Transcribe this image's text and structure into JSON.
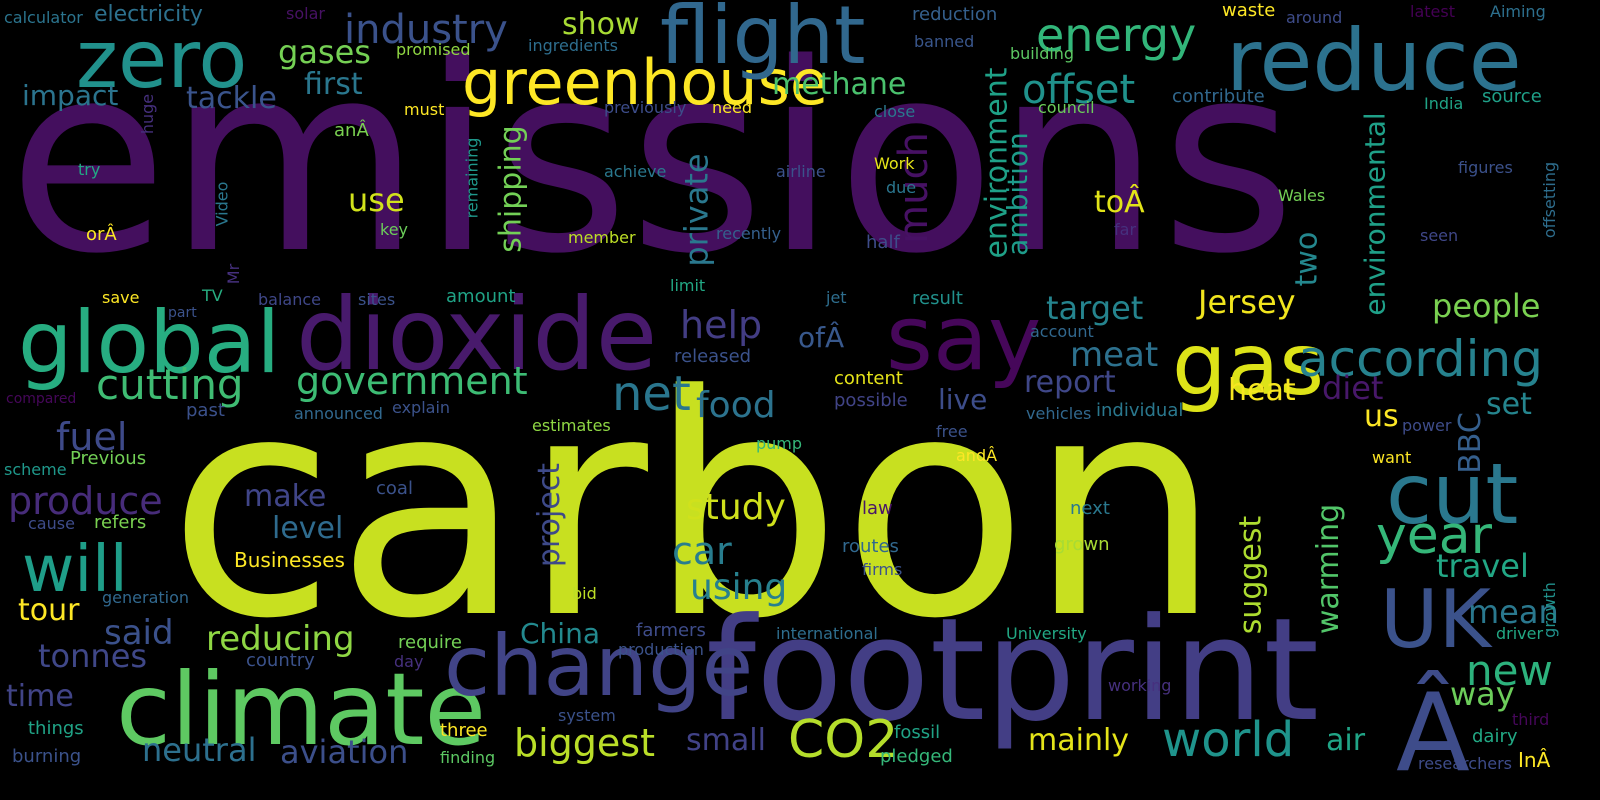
{
  "words": [
    {
      "text": "emissions",
      "color": "#440f5e"
    },
    {
      "text": "carbon",
      "color": "#c8e020"
    },
    {
      "text": "footprint",
      "color": "#433e85"
    },
    {
      "text": "dioxide",
      "color": "#481a6c"
    },
    {
      "text": "climate",
      "color": "#5ec962"
    },
    {
      "text": "change",
      "color": "#414487"
    },
    {
      "text": "reduce",
      "color": "#2c728e"
    },
    {
      "text": "greenhouse",
      "color": "#fde725"
    },
    {
      "text": "flight",
      "color": "#31688e"
    },
    {
      "text": "zero",
      "color": "#21918c"
    },
    {
      "text": "gas",
      "color": "#dde318"
    },
    {
      "text": "say",
      "color": "#46075a"
    },
    {
      "text": "global",
      "color": "#27ad81"
    },
    {
      "text": "cut",
      "color": "#2a788e"
    },
    {
      "text": "UK",
      "color": "#3b528b"
    },
    {
      "text": "Â",
      "color": "#3e4c8a"
    },
    {
      "text": "according",
      "color": "#26828e"
    },
    {
      "text": "will",
      "color": "#1f9e89"
    },
    {
      "text": "year",
      "color": "#35b779"
    },
    {
      "text": "CO2",
      "color": "#b5de2b"
    },
    {
      "text": "world",
      "color": "#1f948c"
    },
    {
      "text": "net",
      "color": "#2a768e"
    },
    {
      "text": "cutting",
      "color": "#3fbc73"
    },
    {
      "text": "government",
      "color": "#3dbc74"
    },
    {
      "text": "energy",
      "color": "#32b67a"
    },
    {
      "text": "industry",
      "color": "#3b528b"
    },
    {
      "text": "produce",
      "color": "#472c7a"
    },
    {
      "text": "biggest",
      "color": "#bade28"
    },
    {
      "text": "new",
      "color": "#2db27d"
    },
    {
      "text": "offset",
      "color": "#20928c"
    },
    {
      "text": "food",
      "color": "#2c738e"
    },
    {
      "text": "fuel",
      "color": "#3e4a89"
    },
    {
      "text": "neutral",
      "color": "#2d708e"
    },
    {
      "text": "aviation",
      "color": "#3c4f8a"
    },
    {
      "text": "reducing",
      "color": "#8fd744"
    },
    {
      "text": "tonnes",
      "color": "#3f4788"
    },
    {
      "text": "using",
      "color": "#27808e"
    },
    {
      "text": "study",
      "color": "#d0e11c"
    },
    {
      "text": "car",
      "color": "#287d8e"
    },
    {
      "text": "methane",
      "color": "#4ac16d"
    },
    {
      "text": "target",
      "color": "#25848e"
    },
    {
      "text": "Jersey",
      "color": "#f1e51d"
    },
    {
      "text": "meat",
      "color": "#2d718e"
    },
    {
      "text": "help",
      "color": "#433d84"
    },
    {
      "text": "gases",
      "color": "#75d054"
    },
    {
      "text": "said",
      "color": "#3b518b"
    },
    {
      "text": "travel",
      "color": "#22a785"
    },
    {
      "text": "mean",
      "color": "#2a788e"
    },
    {
      "text": "way",
      "color": "#6ccd5a"
    },
    {
      "text": "show",
      "color": "#a8db34"
    },
    {
      "text": "people",
      "color": "#7ad151"
    },
    {
      "text": "first",
      "color": "#2a778e"
    },
    {
      "text": "tackle",
      "color": "#3a548c"
    },
    {
      "text": "impact",
      "color": "#2b748e"
    },
    {
      "text": "use",
      "color": "#d2e21b"
    },
    {
      "text": "China",
      "color": "#23898e"
    },
    {
      "text": "mainly",
      "color": "#e5e419"
    },
    {
      "text": "air",
      "color": "#20a486"
    },
    {
      "text": "heat",
      "color": "#f6e620"
    },
    {
      "text": "diet",
      "color": "#48186a"
    },
    {
      "text": "set",
      "color": "#25858e"
    },
    {
      "text": "report",
      "color": "#3f4788"
    },
    {
      "text": "live",
      "color": "#3d4d8a"
    },
    {
      "text": "tour",
      "color": "#fde725"
    },
    {
      "text": "time",
      "color": "#414487"
    },
    {
      "text": "make",
      "color": "#404588"
    },
    {
      "text": "level",
      "color": "#2f6b8e"
    },
    {
      "text": "small",
      "color": "#414287"
    },
    {
      "text": "us",
      "color": "#fde725"
    },
    {
      "text": "ofÂ",
      "color": "#38588c"
    },
    {
      "text": "toÂ",
      "color": "#e2e418"
    },
    {
      "text": "much",
      "color": "#471164"
    },
    {
      "text": "private",
      "color": "#2a788e"
    },
    {
      "text": "shipping",
      "color": "#73d056"
    },
    {
      "text": "two",
      "color": "#24878e"
    },
    {
      "text": "environment",
      "color": "#1fa187"
    },
    {
      "text": "ambition",
      "color": "#1e9b8a"
    },
    {
      "text": "environmental",
      "color": "#1fa088"
    },
    {
      "text": "project",
      "color": "#3e4a89"
    },
    {
      "text": "suggest",
      "color": "#addc30"
    },
    {
      "text": "warming",
      "color": "#52c569"
    },
    {
      "text": "BBC",
      "color": "#355f8d"
    },
    {
      "text": "electricity",
      "color": "#2d718e"
    },
    {
      "text": "calculator",
      "color": "#2b748e"
    },
    {
      "text": "solar",
      "color": "#471164"
    },
    {
      "text": "reduction",
      "color": "#35608d"
    },
    {
      "text": "waste",
      "color": "#fde725"
    },
    {
      "text": "around",
      "color": "#3e4c8a"
    },
    {
      "text": "latest",
      "color": "#440154"
    },
    {
      "text": "Aiming",
      "color": "#2d708e"
    },
    {
      "text": "promised",
      "color": "#90d743"
    },
    {
      "text": "ingredients",
      "color": "#2e6e8e"
    },
    {
      "text": "banned",
      "color": "#39568c"
    },
    {
      "text": "building",
      "color": "#5cc863"
    },
    {
      "text": "contribute",
      "color": "#31688e"
    },
    {
      "text": "India",
      "color": "#20a386"
    },
    {
      "text": "source",
      "color": "#1fa088"
    },
    {
      "text": "huge",
      "color": "#46307e"
    },
    {
      "text": "anÂ",
      "color": "#7ad151"
    },
    {
      "text": "must",
      "color": "#fde725"
    },
    {
      "text": "previously",
      "color": "#3d4d8a"
    },
    {
      "text": "need",
      "color": "#fde725"
    },
    {
      "text": "close",
      "color": "#2a788e"
    },
    {
      "text": "council",
      "color": "#6ccd5a"
    },
    {
      "text": "figures",
      "color": "#3b518b"
    },
    {
      "text": "offsetting",
      "color": "#2e6e8e"
    },
    {
      "text": "try",
      "color": "#22a884"
    },
    {
      "text": "Video",
      "color": "#2a778e"
    },
    {
      "text": "remaining",
      "color": "#1f988b"
    },
    {
      "text": "achieve",
      "color": "#2a788e"
    },
    {
      "text": "airline",
      "color": "#3b528b"
    },
    {
      "text": "Work",
      "color": "#e5e419"
    },
    {
      "text": "due",
      "color": "#2a768e"
    },
    {
      "text": "Wales",
      "color": "#73d056"
    },
    {
      "text": "far",
      "color": "#46307e"
    },
    {
      "text": "seen",
      "color": "#3f4788"
    },
    {
      "text": "orÂ",
      "color": "#fde725"
    },
    {
      "text": "Mr",
      "color": "#46307e"
    },
    {
      "text": "key",
      "color": "#6ccd5a"
    },
    {
      "text": "member",
      "color": "#bddf26"
    },
    {
      "text": "recently",
      "color": "#35608d"
    },
    {
      "text": "half",
      "color": "#3e4c8a"
    },
    {
      "text": "save",
      "color": "#fde725"
    },
    {
      "text": "TV",
      "color": "#27ad81"
    },
    {
      "text": "balance",
      "color": "#3f4788"
    },
    {
      "text": "sites",
      "color": "#3b528b"
    },
    {
      "text": "amount",
      "color": "#20a386"
    },
    {
      "text": "part",
      "color": "#3b528b"
    },
    {
      "text": "limit",
      "color": "#22a884"
    },
    {
      "text": "jet",
      "color": "#2e6e8e"
    },
    {
      "text": "result",
      "color": "#21918c"
    },
    {
      "text": "account",
      "color": "#31688e"
    },
    {
      "text": "released",
      "color": "#3b528b"
    },
    {
      "text": "content",
      "color": "#e5e419"
    },
    {
      "text": "possible",
      "color": "#414487"
    },
    {
      "text": "compared",
      "color": "#46075a"
    },
    {
      "text": "past",
      "color": "#3b518b"
    },
    {
      "text": "announced",
      "color": "#31688e"
    },
    {
      "text": "explain",
      "color": "#3b528b"
    },
    {
      "text": "vehicles",
      "color": "#31688e"
    },
    {
      "text": "individual",
      "color": "#2a788e"
    },
    {
      "text": "estimates",
      "color": "#8fd744"
    },
    {
      "text": "scheme",
      "color": "#1f988b"
    },
    {
      "text": "Previous",
      "color": "#73d056"
    },
    {
      "text": "pump",
      "color": "#35b779"
    },
    {
      "text": "free",
      "color": "#3b528b"
    },
    {
      "text": "andÂ",
      "color": "#fde725"
    },
    {
      "text": "power",
      "color": "#3e4c8a"
    },
    {
      "text": "want",
      "color": "#fde725"
    },
    {
      "text": "coal",
      "color": "#3b528b"
    },
    {
      "text": "cause",
      "color": "#3e4c8a"
    },
    {
      "text": "refers",
      "color": "#7ad151"
    },
    {
      "text": "law",
      "color": "#481668"
    },
    {
      "text": "next",
      "color": "#2a788e"
    },
    {
      "text": "Businesses",
      "color": "#fde725"
    },
    {
      "text": "routes",
      "color": "#31688e"
    },
    {
      "text": "grown",
      "color": "#a8db34"
    },
    {
      "text": "firms",
      "color": "#3b528b"
    },
    {
      "text": "generation",
      "color": "#31688e"
    },
    {
      "text": "bid",
      "color": "#bddf26"
    },
    {
      "text": "growth",
      "color": "#21918c"
    },
    {
      "text": "farmers",
      "color": "#3e4c8a"
    },
    {
      "text": "international",
      "color": "#2e6e8e"
    },
    {
      "text": "University",
      "color": "#22a884"
    },
    {
      "text": "driver",
      "color": "#22a884"
    },
    {
      "text": "require",
      "color": "#73d056"
    },
    {
      "text": "production",
      "color": "#3b528b"
    },
    {
      "text": "country",
      "color": "#3b528b"
    },
    {
      "text": "day",
      "color": "#46307e"
    },
    {
      "text": "working",
      "color": "#46307e"
    },
    {
      "text": "things",
      "color": "#20a386"
    },
    {
      "text": "system",
      "color": "#3b528b"
    },
    {
      "text": "three",
      "color": "#fde725"
    },
    {
      "text": "fossil",
      "color": "#20a386"
    },
    {
      "text": "dairy",
      "color": "#22a884"
    },
    {
      "text": "third",
      "color": "#46075a"
    },
    {
      "text": "burning",
      "color": "#3b528b"
    },
    {
      "text": "finding",
      "color": "#5cc863"
    },
    {
      "text": "pledged",
      "color": "#35b779"
    },
    {
      "text": "researchers",
      "color": "#3e4c8a"
    },
    {
      "text": "InÂ",
      "color": "#fde725"
    }
  ]
}
